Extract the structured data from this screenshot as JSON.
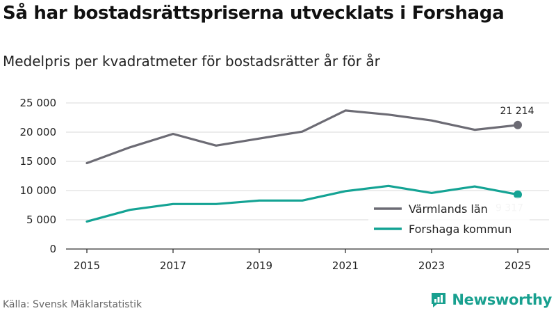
{
  "title": "Så har bostadsrättspriserna utvecklats i Forshaga",
  "subtitle": "Medelpris per kvadratmeter för bostadsrätter år för år",
  "source": "Källa: Svensk Mäklarstatistik",
  "brand": "Newsworthy",
  "colors": {
    "varmland": "#6c6b74",
    "forshaga": "#14a394",
    "grid": "#d9d9d9",
    "axis": "#333333"
  },
  "chart_data": {
    "type": "line",
    "title": "Så har bostadsrättspriserna utvecklats i Forshaga",
    "subtitle": "Medelpris per kvadratmeter för bostadsrätter år för år",
    "xlabel": "",
    "ylabel": "",
    "x": [
      2015,
      2016,
      2017,
      2018,
      2019,
      2020,
      2021,
      2022,
      2023,
      2024,
      2025
    ],
    "ylim": [
      0,
      25000
    ],
    "yticks": [
      0,
      5000,
      10000,
      15000,
      20000,
      25000
    ],
    "ytick_labels": [
      "0",
      "5 000",
      "10 000",
      "15 000",
      "20 000",
      "25 000"
    ],
    "xticks": [
      2015,
      2017,
      2019,
      2021,
      2023,
      2025
    ],
    "xtick_labels": [
      "2015",
      "2017",
      "2019",
      "2021",
      "2023",
      "2025"
    ],
    "grid": true,
    "legend_position": "bottom-right",
    "series": [
      {
        "name": "Värmlands län",
        "values": [
          14700,
          17400,
          19700,
          17700,
          18900,
          20100,
          23700,
          23000,
          22000,
          20400,
          21214
        ],
        "end_label": "21 214"
      },
      {
        "name": "Forshaga kommun",
        "values": [
          4700,
          6700,
          7700,
          7700,
          8300,
          8300,
          9900,
          10800,
          9600,
          10700,
          9317
        ],
        "end_label": "9 317"
      }
    ]
  }
}
